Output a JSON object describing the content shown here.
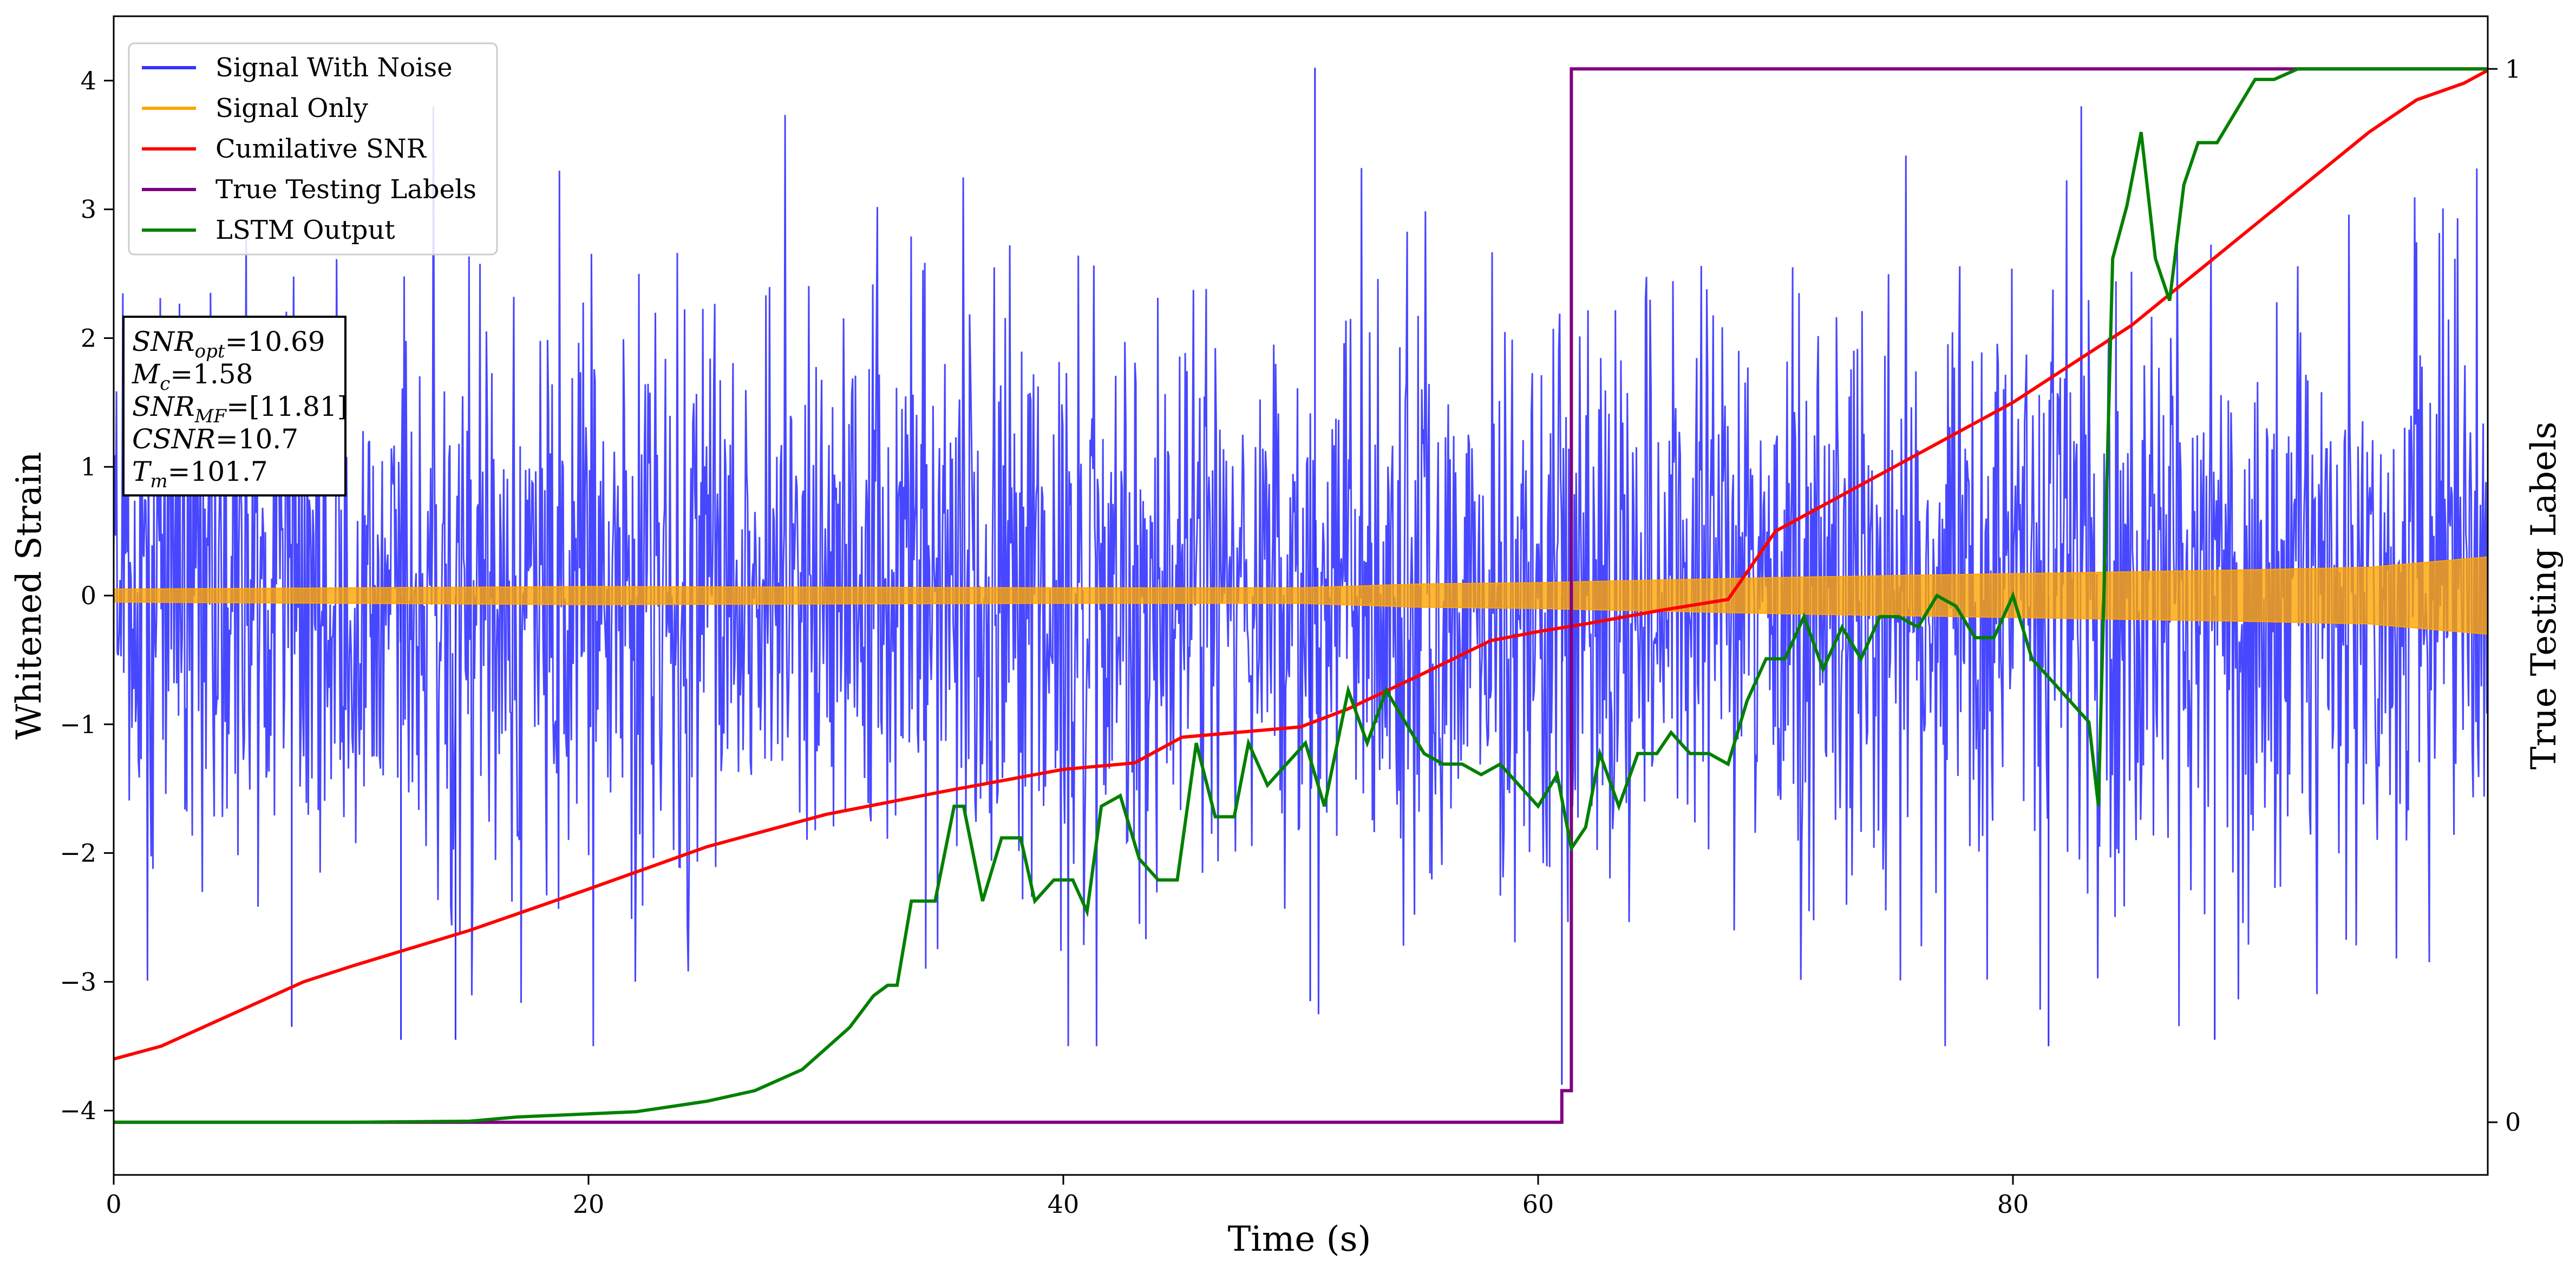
{
  "chart_data": {
    "type": "line",
    "xlabel": "Time (s)",
    "ylabel": "Whitened Strain",
    "y2label": "True Testing Labels",
    "xlim": [
      0,
      100
    ],
    "ylim": [
      -4.5,
      4.5
    ],
    "y2lim": [
      -0.05,
      1.05
    ],
    "x_ticks": [
      0,
      20,
      40,
      60,
      80
    ],
    "y_ticks": [
      -4,
      -3,
      -2,
      -1,
      0,
      1,
      2,
      3,
      4
    ],
    "y2_ticks": [
      0,
      1
    ],
    "x_tick_labels": [
      "0",
      "20",
      "40",
      "60",
      "80"
    ],
    "y_tick_labels": [
      "−4",
      "−3",
      "−2",
      "−1",
      "0",
      "1",
      "2",
      "3",
      "4"
    ],
    "y2_tick_labels": [
      "0",
      "1"
    ],
    "grid": false,
    "legend_position": "top-left",
    "series": [
      {
        "name": "Signal With Noise",
        "color": "#3333ff",
        "axis": "left",
        "kind": "noise",
        "envelope": {
          "typical_abs": 1.2,
          "max": 4.1,
          "min": -3.5
        },
        "notable_spikes": [
          [
            50.6,
            4.1
          ],
          [
            7.5,
            -3.35
          ],
          [
            12.1,
            -3.45
          ],
          [
            14.4,
            -3.45
          ],
          [
            50.4,
            -3.15
          ],
          [
            81.5,
            -3.5
          ],
          [
            88.5,
            -3.45
          ],
          [
            61.0,
            -3.8
          ]
        ]
      },
      {
        "name": "Signal Only",
        "color": "#ffa500",
        "axis": "left",
        "kind": "band",
        "amplitude_x": [
          0,
          20,
          40,
          50,
          55,
          60,
          65,
          70,
          80,
          90,
          95,
          100
        ],
        "amplitude": [
          0.05,
          0.07,
          0.06,
          0.06,
          0.09,
          0.1,
          0.12,
          0.14,
          0.17,
          0.2,
          0.22,
          0.3
        ]
      },
      {
        "name": "Cumilative SNR",
        "color": "#ff0000",
        "axis": "left",
        "x": [
          0,
          2,
          5,
          8,
          10,
          15,
          20,
          25,
          30,
          35,
          40,
          43,
          45,
          50,
          52,
          55,
          58,
          60,
          62,
          65,
          68,
          70,
          75,
          80,
          85,
          90,
          95,
          97,
          99,
          100
        ],
        "values": [
          -3.6,
          -3.5,
          -3.25,
          -3.0,
          -2.88,
          -2.6,
          -2.28,
          -1.95,
          -1.7,
          -1.52,
          -1.35,
          -1.3,
          -1.1,
          -1.02,
          -0.88,
          -0.62,
          -0.35,
          -0.28,
          -0.22,
          -0.12,
          -0.03,
          0.5,
          1.0,
          1.5,
          2.1,
          2.85,
          3.6,
          3.85,
          3.98,
          4.08
        ]
      },
      {
        "name": "True Testing Labels",
        "color": "#800080",
        "axis": "right",
        "x": [
          0,
          61.0,
          61.0,
          61.4,
          61.4,
          100
        ],
        "values": [
          0,
          0,
          0.03,
          0.03,
          1,
          1
        ]
      },
      {
        "name": "LSTM Output",
        "color": "#008000",
        "axis": "right",
        "x": [
          0,
          10,
          15,
          17,
          20,
          22,
          25,
          27,
          29,
          30,
          31,
          32,
          32.6,
          33,
          33.6,
          34.6,
          35.4,
          35.8,
          36.6,
          37.4,
          38.2,
          38.8,
          39.6,
          40.4,
          41,
          41.6,
          42.4,
          43.2,
          44,
          44.8,
          45.6,
          46.4,
          47.2,
          47.8,
          48.6,
          49.4,
          50.2,
          51,
          52,
          52.8,
          53.6,
          54.4,
          55.2,
          56,
          56.8,
          57.6,
          58.4,
          59.2,
          60,
          60.8,
          61.4,
          62,
          62.6,
          63.4,
          64.2,
          65,
          65.6,
          66.4,
          67.2,
          68,
          68.8,
          69.6,
          70.4,
          71.2,
          72,
          72.8,
          73.6,
          74.4,
          75.2,
          76,
          76.8,
          77.6,
          78.4,
          79.2,
          80,
          80.8,
          81.6,
          82.4,
          83.2,
          83.6,
          84.2,
          84.8,
          85.4,
          86,
          86.6,
          87.2,
          87.8,
          88.6,
          89.4,
          90.2,
          91,
          92,
          93,
          94,
          96,
          98,
          100
        ],
        "values": [
          0,
          0,
          0.001,
          0.005,
          0.008,
          0.01,
          0.02,
          0.03,
          0.05,
          0.07,
          0.09,
          0.12,
          0.13,
          0.13,
          0.21,
          0.21,
          0.3,
          0.3,
          0.21,
          0.27,
          0.27,
          0.21,
          0.23,
          0.23,
          0.2,
          0.3,
          0.31,
          0.25,
          0.23,
          0.23,
          0.36,
          0.29,
          0.29,
          0.36,
          0.32,
          0.34,
          0.36,
          0.3,
          0.41,
          0.36,
          0.41,
          0.38,
          0.35,
          0.34,
          0.34,
          0.33,
          0.34,
          0.32,
          0.3,
          0.33,
          0.26,
          0.28,
          0.35,
          0.3,
          0.35,
          0.35,
          0.37,
          0.35,
          0.35,
          0.34,
          0.4,
          0.44,
          0.44,
          0.48,
          0.43,
          0.47,
          0.44,
          0.48,
          0.48,
          0.47,
          0.5,
          0.49,
          0.46,
          0.46,
          0.5,
          0.44,
          0.42,
          0.4,
          0.38,
          0.3,
          0.82,
          0.87,
          0.94,
          0.82,
          0.78,
          0.89,
          0.93,
          0.93,
          0.96,
          0.99,
          0.99,
          1.0,
          1.0,
          1.0,
          1.0,
          1.0,
          1.0
        ]
      }
    ],
    "info_box": [
      {
        "var": "SNR",
        "sub": "opt",
        "val": "=10.69"
      },
      {
        "var": "M",
        "sub": "c",
        "val": "=1.58"
      },
      {
        "var": "SNR",
        "sub": "MF",
        "val": "=[11.81]"
      },
      {
        "var": "CSNR",
        "sub": "",
        "val": "=10.7"
      },
      {
        "var": "T",
        "sub": "m",
        "val": "=101.7"
      }
    ]
  }
}
